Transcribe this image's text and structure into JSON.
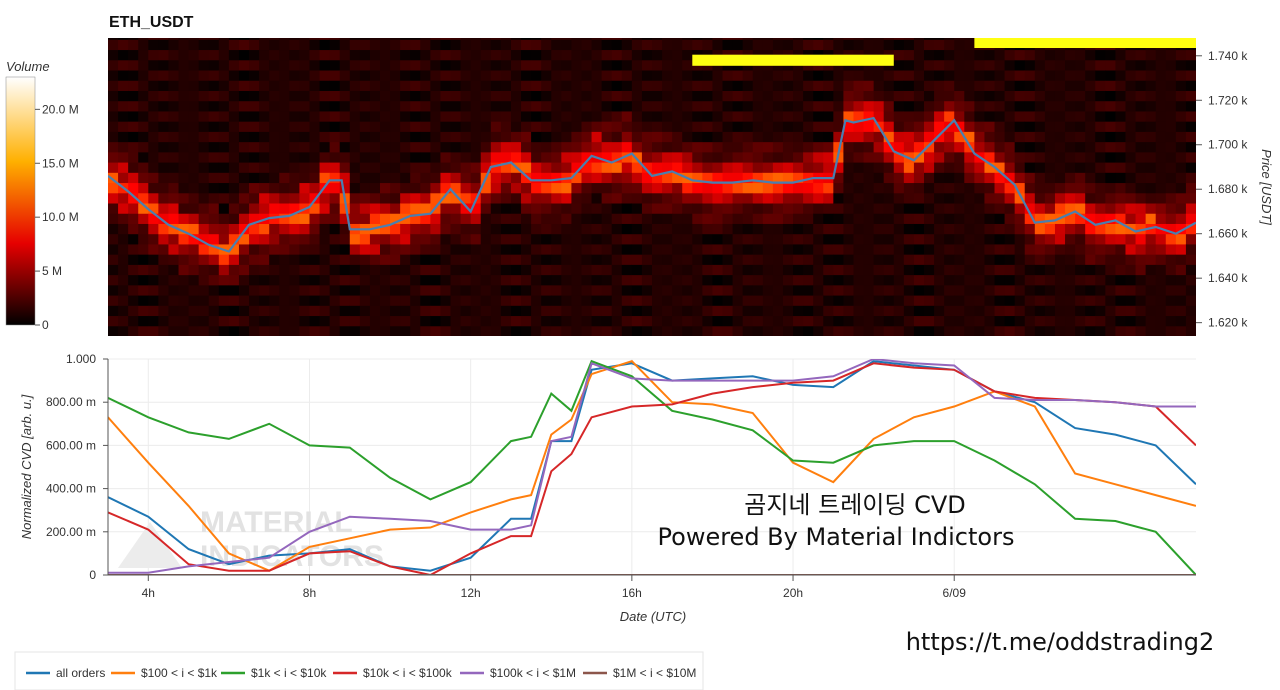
{
  "chart_data": [
    {
      "type": "heatmap",
      "title": "ETH_USDT",
      "ylabel": "Price [USDT]",
      "yticks": [
        "1.740 k",
        "1.720 k",
        "1.700 k",
        "1.680 k",
        "1.660 k",
        "1.640 k",
        "1.620 k"
      ],
      "ytick_values": [
        1740,
        1720,
        1700,
        1680,
        1660,
        1640,
        1620
      ],
      "ylim": [
        1614,
        1748
      ],
      "xlim_hours": [
        3,
        30
      ],
      "colorbar": {
        "label": "Volume",
        "ticks": [
          "20.0 M",
          "15.0 M",
          "10.0 M",
          "5 M",
          "0"
        ],
        "tick_values": [
          20,
          15,
          10,
          5,
          0
        ],
        "range": [
          0,
          23
        ],
        "colormap": "hot"
      },
      "price_line": {
        "color": "#4a7fb0",
        "x": [
          3.0,
          3.5,
          4.0,
          4.5,
          5.0,
          5.5,
          6.0,
          6.5,
          7.0,
          7.5,
          8.0,
          8.5,
          8.8,
          9.0,
          9.5,
          10.0,
          10.5,
          11.0,
          11.5,
          12.0,
          12.5,
          13.0,
          13.5,
          14.0,
          14.5,
          15.0,
          15.5,
          16.0,
          16.5,
          17.0,
          17.5,
          18.0,
          18.5,
          19.0,
          19.5,
          20.0,
          20.5,
          21.0,
          21.3,
          21.5,
          22.0,
          22.5,
          23.0,
          23.5,
          24.0,
          24.5,
          25.0,
          25.5,
          26.0,
          26.5,
          27.0,
          27.5,
          28.0,
          28.5,
          29.0,
          29.5,
          30.0
        ],
        "y": [
          1686,
          1679,
          1671,
          1664,
          1660,
          1655,
          1652,
          1664,
          1667,
          1668,
          1672,
          1684,
          1684,
          1662,
          1662,
          1664,
          1668,
          1669,
          1680,
          1670,
          1690,
          1692,
          1684,
          1684,
          1685,
          1695,
          1692,
          1696,
          1686,
          1688,
          1684,
          1683,
          1683,
          1684,
          1683,
          1683,
          1685,
          1685,
          1711,
          1710,
          1712,
          1697,
          1693,
          1702,
          1711,
          1696,
          1690,
          1682,
          1665,
          1666,
          1670,
          1664,
          1666,
          1661,
          1663,
          1660,
          1665
        ]
      },
      "orders": [
        {
          "x0": 17.5,
          "x1": 22.5,
          "price": 1738,
          "volume": 17
        },
        {
          "x0": 24.5,
          "x1": 30.0,
          "price": 1746,
          "volume": 17
        }
      ]
    },
    {
      "type": "line",
      "xlabel": "Date (UTC)",
      "ylabel": "Normalized CVD [arb. u.]",
      "xlim": [
        3,
        30
      ],
      "ylim": [
        0,
        1.0
      ],
      "yticks": [
        "1.000",
        "800.00 m",
        "600.00 m",
        "400.00 m",
        "200.00 m",
        "0"
      ],
      "ytick_values": [
        1.0,
        0.8,
        0.6,
        0.4,
        0.2,
        0.0
      ],
      "xticks": [
        "4h",
        "8h",
        "12h",
        "16h",
        "20h",
        "6/09"
      ],
      "xtick_values": [
        4,
        8,
        12,
        16,
        20,
        24
      ],
      "x": [
        3,
        4,
        5,
        6,
        7,
        8,
        9,
        10,
        11,
        12,
        13,
        13.5,
        14,
        14.5,
        15,
        16,
        17,
        18,
        19,
        20,
        21,
        22,
        23,
        24,
        25,
        26,
        27,
        28,
        29,
        30
      ],
      "series": [
        {
          "name": "all orders",
          "color": "#1f77b4",
          "values": [
            0.36,
            0.27,
            0.12,
            0.05,
            0.09,
            0.1,
            0.12,
            0.04,
            0.02,
            0.08,
            0.26,
            0.26,
            0.62,
            0.62,
            0.95,
            0.98,
            0.9,
            0.91,
            0.92,
            0.88,
            0.87,
            0.99,
            0.97,
            0.95,
            0.85,
            0.8,
            0.68,
            0.65,
            0.6,
            0.42
          ]
        },
        {
          "name": "$100 < i < $1k",
          "color": "#ff7f0e",
          "values": [
            0.73,
            0.52,
            0.32,
            0.1,
            0.02,
            0.13,
            0.17,
            0.21,
            0.22,
            0.29,
            0.35,
            0.37,
            0.65,
            0.72,
            0.93,
            0.99,
            0.8,
            0.79,
            0.75,
            0.52,
            0.43,
            0.63,
            0.73,
            0.78,
            0.85,
            0.78,
            0.47,
            0.42,
            0.37,
            0.32
          ]
        },
        {
          "name": "$1k < i < $10k",
          "color": "#2ca02c",
          "values": [
            0.82,
            0.73,
            0.66,
            0.63,
            0.7,
            0.6,
            0.59,
            0.45,
            0.35,
            0.43,
            0.62,
            0.64,
            0.84,
            0.76,
            0.99,
            0.92,
            0.76,
            0.72,
            0.67,
            0.53,
            0.52,
            0.6,
            0.62,
            0.62,
            0.53,
            0.42,
            0.26,
            0.25,
            0.2,
            0.0
          ]
        },
        {
          "name": "$10k < i < $100k",
          "color": "#d62728",
          "values": [
            0.29,
            0.21,
            0.05,
            0.02,
            0.02,
            0.1,
            0.11,
            0.04,
            0.0,
            0.1,
            0.18,
            0.18,
            0.48,
            0.56,
            0.73,
            0.78,
            0.79,
            0.84,
            0.87,
            0.89,
            0.9,
            0.98,
            0.96,
            0.95,
            0.85,
            0.82,
            0.81,
            0.8,
            0.78,
            0.6
          ]
        },
        {
          "name": "$100k < i < $1M",
          "color": "#9467bd",
          "values": [
            0.01,
            0.01,
            0.04,
            0.06,
            0.08,
            0.2,
            0.27,
            0.26,
            0.25,
            0.21,
            0.21,
            0.23,
            0.62,
            0.64,
            0.98,
            0.91,
            0.9,
            0.9,
            0.9,
            0.9,
            0.92,
            1.0,
            0.98,
            0.97,
            0.82,
            0.81,
            0.81,
            0.8,
            0.78,
            0.78
          ]
        },
        {
          "name": "$1M < i < $10M",
          "color": "#8c564b",
          "values": [
            0.0,
            0.0,
            0.0,
            0.0,
            0.0,
            0.0,
            0.0,
            0.0,
            0.0,
            0.0,
            0.0,
            0.0,
            0.0,
            0.0,
            0.0,
            0.0,
            0.0,
            0.0,
            0.0,
            0.0,
            0.0,
            0.0,
            0.0,
            0.0,
            0.0,
            0.0,
            0.0,
            0.0,
            0.0,
            0.0
          ]
        }
      ]
    }
  ],
  "overlay": {
    "line1": "곰지네 트레이딩 CVD",
    "line2": "Powered By Material Indictors",
    "link": "https://t.me/oddstrading2",
    "watermark_line1": "MATERIAL",
    "watermark_line2": "INDICATORS"
  }
}
